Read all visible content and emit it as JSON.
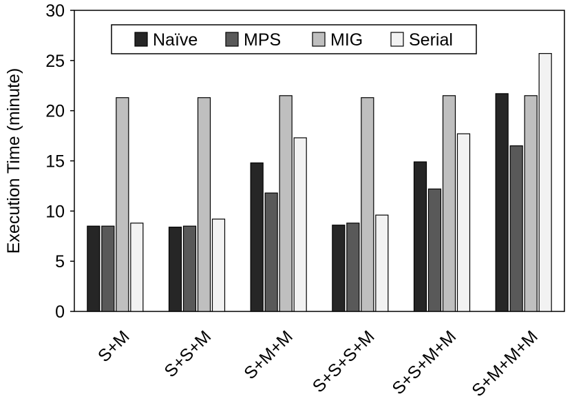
{
  "chart_data": {
    "type": "bar",
    "title": "",
    "xlabel": "",
    "ylabel": "Execution Time (minute)",
    "ylim": [
      0,
      30
    ],
    "yticks": [
      0,
      5,
      10,
      15,
      20,
      25,
      30
    ],
    "grid": false,
    "legend_position": "top",
    "categories": [
      "S+M",
      "S+S+M",
      "S+M+M",
      "S+S+S+M",
      "S+S+M+M",
      "S+M+M+M"
    ],
    "series": [
      {
        "name": "Naïve",
        "color": "#262626",
        "values": [
          8.5,
          8.4,
          14.8,
          8.6,
          14.9,
          21.7
        ]
      },
      {
        "name": "MPS",
        "color": "#595959",
        "values": [
          8.5,
          8.5,
          11.8,
          8.8,
          12.2,
          16.5
        ]
      },
      {
        "name": "MIG",
        "color": "#bfbfbf",
        "values": [
          21.3,
          21.3,
          21.5,
          21.3,
          21.5,
          21.5
        ]
      },
      {
        "name": "Serial",
        "color": "#f2f2f2",
        "values": [
          8.8,
          9.2,
          17.3,
          9.6,
          17.7,
          25.7
        ]
      }
    ]
  }
}
